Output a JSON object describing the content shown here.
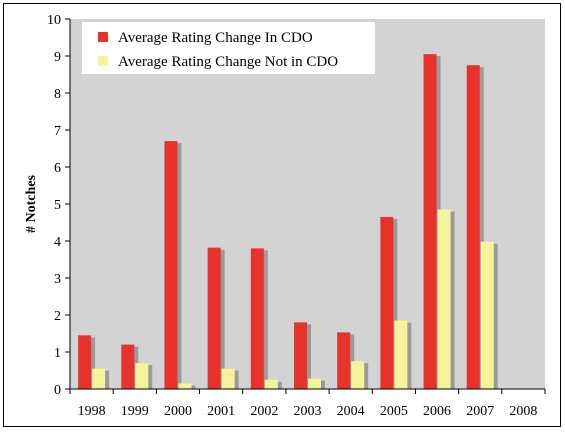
{
  "chart_data": {
    "type": "bar",
    "title": "",
    "xlabel": "",
    "ylabel": "# Notches",
    "ylim": [
      0,
      10
    ],
    "yticks": [
      0,
      1,
      2,
      3,
      4,
      5,
      6,
      7,
      8,
      9,
      10
    ],
    "grid": false,
    "legend_position": "top-left",
    "categories": [
      "1998",
      "1999",
      "2000",
      "2001",
      "2002",
      "2003",
      "2004",
      "2005",
      "2006",
      "2007",
      "2008"
    ],
    "series": [
      {
        "name": "Average Rating Change In CDO",
        "color": "#e8322c",
        "values": [
          1.45,
          1.2,
          6.7,
          3.82,
          3.8,
          1.8,
          1.53,
          4.65,
          9.05,
          8.75,
          0
        ]
      },
      {
        "name": "Average Rating Change Not in CDO",
        "color": "#f6f49b",
        "values": [
          0.55,
          0.7,
          0.15,
          0.55,
          0.25,
          0.28,
          0.75,
          1.85,
          4.85,
          3.98,
          0
        ]
      }
    ],
    "plot_background": "#d3d3d3",
    "shadow_color": "#9a9a9a"
  }
}
